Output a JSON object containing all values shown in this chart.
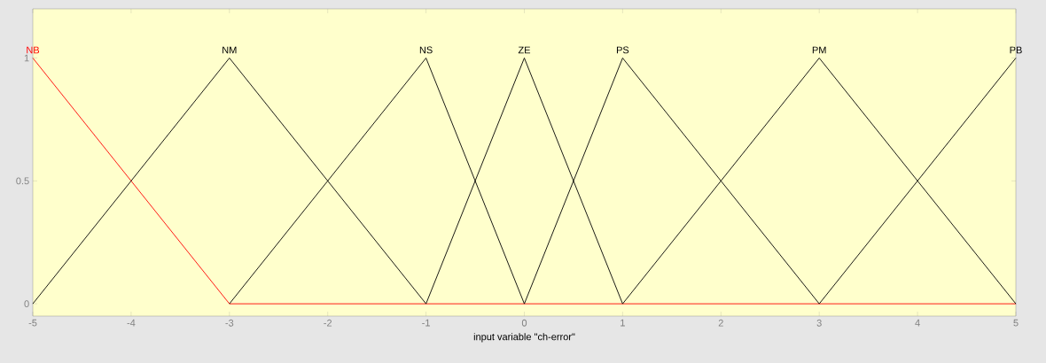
{
  "chart_data": {
    "type": "line",
    "xlabel": "input variable \"ch-error\"",
    "xlim": [
      -5,
      5
    ],
    "ylim": [
      -0.05,
      1.2
    ],
    "xticks": [
      -5,
      -4,
      -3,
      -2,
      -1,
      0,
      1,
      2,
      3,
      4,
      5
    ],
    "yticks": [
      0,
      0.5,
      1
    ],
    "series": [
      {
        "name": "NB",
        "color": "#ff0000",
        "x": [
          -5,
          -3,
          5
        ],
        "values": [
          1,
          0,
          0
        ]
      },
      {
        "name": "NM",
        "color": "#000000",
        "x": [
          -5,
          -3,
          -1
        ],
        "values": [
          0,
          1,
          0
        ]
      },
      {
        "name": "NS",
        "color": "#000000",
        "x": [
          -3,
          -1,
          0
        ],
        "values": [
          0,
          1,
          0
        ]
      },
      {
        "name": "ZE",
        "color": "#000000",
        "x": [
          -1,
          0,
          1
        ],
        "values": [
          0,
          1,
          0
        ]
      },
      {
        "name": "PS",
        "color": "#000000",
        "x": [
          0,
          1,
          3
        ],
        "values": [
          0,
          1,
          0
        ]
      },
      {
        "name": "PM",
        "color": "#000000",
        "x": [
          1,
          3,
          5
        ],
        "values": [
          0,
          1,
          0
        ]
      },
      {
        "name": "PB",
        "color": "#000000",
        "x": [
          3,
          5
        ],
        "values": [
          0,
          1
        ]
      }
    ]
  }
}
